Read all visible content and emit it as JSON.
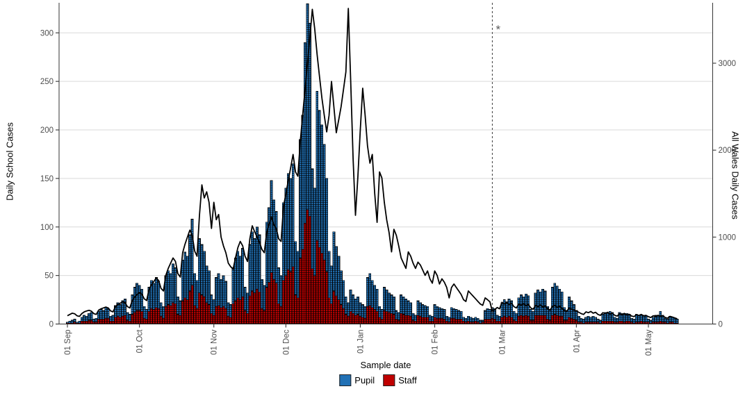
{
  "chart_data": {
    "type": "stacked-bar+line",
    "xlabel": "Sample date",
    "y_left": {
      "label": "Daily School Cases",
      "ticks": [
        0,
        50,
        100,
        150,
        200,
        250,
        300
      ],
      "range": [
        0,
        334
      ]
    },
    "y_right": {
      "label": "All Wales Daily Cases",
      "ticks": [
        0,
        1000,
        2000,
        3000
      ],
      "range": [
        0,
        3730
      ]
    },
    "x_ticks": [
      {
        "label": "01 Sep",
        "day": 0
      },
      {
        "label": "01 Oct",
        "day": 30
      },
      {
        "label": "01 Nov",
        "day": 61
      },
      {
        "label": "01 Dec",
        "day": 91
      },
      {
        "label": "01 Jan",
        "day": 122
      },
      {
        "label": "01 Feb",
        "day": 153
      },
      {
        "label": "01 Mar",
        "day": 181
      },
      {
        "label": "01 Apr",
        "day": 212
      },
      {
        "label": "01 May",
        "day": 242
      }
    ],
    "legend": [
      {
        "name": "Pupil",
        "color": "#2171B5"
      },
      {
        "name": "Staff",
        "color": "#C00000"
      }
    ],
    "annotation": {
      "vline_day": 177,
      "symbol": "*",
      "line_color": "#4d4d4d",
      "symbol_color": "#595959"
    },
    "colors": {
      "line": "#000000",
      "grid": "#d9d9d9",
      "axis": "#333333",
      "tick_text": "#4d4d4d"
    },
    "days": 255,
    "series": {
      "pupil": [
        1,
        2,
        3,
        3,
        1,
        2,
        4,
        6,
        5,
        7,
        8,
        3,
        4,
        8,
        10,
        9,
        11,
        10,
        5,
        6,
        12,
        14,
        13,
        16,
        17,
        8,
        7,
        20,
        26,
        28,
        26,
        23,
        12,
        10,
        25,
        29,
        27,
        31,
        28,
        14,
        12,
        32,
        35,
        33,
        40,
        37,
        18,
        15,
        42,
        47,
        45,
        58,
        68,
        33,
        29,
        56,
        52,
        47,
        38,
        35,
        19,
        16,
        30,
        33,
        29,
        32,
        28,
        14,
        13,
        37,
        44,
        48,
        45,
        50,
        24,
        21,
        53,
        61,
        56,
        64,
        59,
        30,
        26,
        67,
        77,
        95,
        82,
        74,
        37,
        32,
        80,
        90,
        99,
        96,
        106,
        55,
        48,
        122,
        138,
        186,
        212,
        199,
        103,
        90,
        154,
        141,
        132,
        119,
        96,
        48,
        39,
        61,
        51,
        45,
        35,
        29,
        18,
        14,
        22,
        19,
        17,
        18,
        14,
        13,
        12,
        30,
        33,
        28,
        25,
        23,
        11,
        10,
        24,
        22,
        20,
        19,
        18,
        9,
        8,
        19,
        18,
        17,
        15,
        14,
        7,
        6,
        15,
        14,
        13,
        12,
        11,
        6,
        5,
        13,
        12,
        11,
        10,
        10,
        5,
        5,
        11,
        10,
        10,
        9,
        8,
        4,
        4,
        5,
        5,
        4,
        4,
        4,
        3,
        2,
        9,
        11,
        10,
        11,
        11,
        6,
        5,
        15,
        17,
        16,
        18,
        17,
        9,
        8,
        19,
        21,
        20,
        22,
        21,
        11,
        9,
        23,
        26,
        24,
        27,
        25,
        13,
        11,
        29,
        32,
        30,
        28,
        25,
        13,
        10,
        21,
        18,
        15,
        10,
        6,
        4,
        4,
        5,
        6,
        5,
        6,
        5,
        3,
        3,
        7,
        9,
        8,
        10,
        9,
        5,
        4,
        9,
        8,
        8,
        8,
        7,
        4,
        4,
        8,
        7,
        6,
        6,
        6,
        3,
        3,
        5,
        7,
        6,
        10,
        7,
        4,
        4,
        6,
        5,
        5,
        4
      ],
      "staff": [
        1,
        1,
        1,
        2,
        1,
        1,
        3,
        3,
        3,
        4,
        4,
        2,
        2,
        5,
        5,
        5,
        6,
        6,
        3,
        3,
        7,
        8,
        7,
        8,
        9,
        4,
        3,
        10,
        12,
        14,
        14,
        13,
        6,
        5,
        13,
        16,
        15,
        17,
        16,
        8,
        6,
        18,
        20,
        19,
        22,
        21,
        10,
        9,
        24,
        27,
        25,
        34,
        40,
        19,
        16,
        32,
        30,
        28,
        22,
        20,
        11,
        9,
        18,
        19,
        17,
        18,
        16,
        8,
        7,
        21,
        24,
        27,
        25,
        28,
        14,
        11,
        29,
        34,
        32,
        36,
        33,
        16,
        14,
        38,
        43,
        53,
        46,
        42,
        21,
        18,
        45,
        50,
        56,
        54,
        59,
        30,
        27,
        68,
        77,
        104,
        118,
        111,
        57,
        50,
        86,
        79,
        73,
        66,
        54,
        27,
        21,
        34,
        29,
        25,
        20,
        16,
        10,
        8,
        13,
        11,
        9,
        10,
        8,
        7,
        6,
        18,
        19,
        17,
        15,
        13,
        7,
        5,
        14,
        13,
        12,
        11,
        10,
        5,
        4,
        11,
        10,
        9,
        9,
        8,
        4,
        3,
        9,
        8,
        7,
        7,
        7,
        3,
        3,
        7,
        6,
        6,
        6,
        5,
        3,
        2,
        6,
        6,
        5,
        5,
        5,
        3,
        2,
        3,
        2,
        2,
        3,
        2,
        1,
        2,
        5,
        5,
        5,
        6,
        5,
        3,
        3,
        7,
        8,
        7,
        8,
        7,
        4,
        3,
        8,
        9,
        8,
        9,
        8,
        4,
        4,
        9,
        9,
        9,
        9,
        9,
        5,
        4,
        9,
        10,
        9,
        8,
        8,
        4,
        4,
        7,
        6,
        5,
        4,
        2,
        2,
        1,
        2,
        2,
        2,
        2,
        2,
        2,
        1,
        3,
        3,
        3,
        3,
        3,
        2,
        2,
        3,
        3,
        2,
        3,
        3,
        2,
        1,
        2,
        2,
        3,
        2,
        2,
        2,
        1,
        2,
        2,
        2,
        3,
        2,
        2,
        1,
        2,
        2,
        1,
        1
      ],
      "all_wales": [
        95,
        110,
        125,
        118,
        95,
        88,
        120,
        140,
        150,
        158,
        148,
        120,
        110,
        160,
        175,
        185,
        195,
        185,
        150,
        140,
        200,
        225,
        240,
        255,
        245,
        200,
        185,
        270,
        310,
        340,
        360,
        345,
        290,
        270,
        400,
        450,
        490,
        530,
        500,
        410,
        380,
        560,
        640,
        700,
        760,
        720,
        580,
        540,
        820,
        920,
        1000,
        1080,
        1020,
        840,
        780,
        1250,
        1600,
        1450,
        1520,
        1400,
        1100,
        1400,
        1200,
        1260,
        1000,
        900,
        820,
        700,
        660,
        630,
        760,
        880,
        950,
        900,
        780,
        720,
        980,
        1130,
        1060,
        1000,
        940,
        860,
        820,
        1050,
        1150,
        1230,
        1140,
        1100,
        980,
        950,
        1350,
        1500,
        1650,
        1800,
        1950,
        1750,
        1700,
        2100,
        2400,
        2700,
        3000,
        3300,
        3620,
        3400,
        3100,
        2850,
        2600,
        2400,
        2210,
        2400,
        2790,
        2500,
        2200,
        2350,
        2500,
        2700,
        2900,
        3630,
        2800,
        1900,
        1250,
        1700,
        2230,
        2712,
        2400,
        2050,
        1850,
        1950,
        1500,
        1170,
        1750,
        1680,
        1400,
        1200,
        1050,
        830,
        1090,
        1020,
        900,
        760,
        700,
        640,
        830,
        780,
        700,
        640,
        712,
        680,
        620,
        560,
        610,
        520,
        470,
        610,
        560,
        460,
        520,
        480,
        420,
        300,
        420,
        460,
        420,
        380,
        340,
        280,
        260,
        380,
        350,
        320,
        290,
        260,
        230,
        215,
        300,
        280,
        255,
        145,
        165,
        190,
        175,
        250,
        230,
        245,
        225,
        240,
        200,
        185,
        230,
        215,
        235,
        210,
        225,
        185,
        170,
        215,
        200,
        220,
        195,
        210,
        175,
        160,
        200,
        215,
        190,
        205,
        180,
        155,
        145,
        185,
        170,
        160,
        150,
        135,
        120,
        110,
        140,
        130,
        145,
        125,
        135,
        110,
        100,
        130,
        120,
        135,
        115,
        125,
        100,
        92,
        118,
        108,
        122,
        105,
        112,
        92,
        85,
        108,
        98,
        110,
        95,
        100,
        85,
        75,
        95,
        88,
        100,
        90,
        95,
        75,
        68,
        88,
        80,
        70,
        60
      ]
    }
  }
}
